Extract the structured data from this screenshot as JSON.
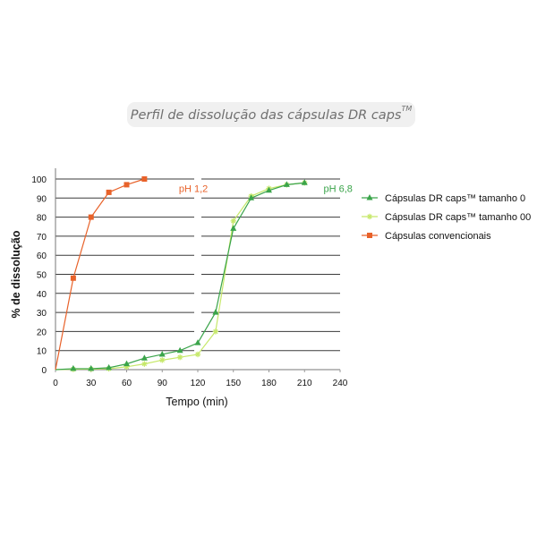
{
  "title": {
    "text": "Perfil de dissolução das cápsulas DR caps",
    "sup": "TM"
  },
  "chart_data": {
    "type": "line",
    "title": "Perfil de dissolução das cápsulas DR caps™",
    "xlabel": "Tempo (min)",
    "ylabel": "% de dissolução",
    "xlim": [
      0,
      240
    ],
    "ylim": [
      0,
      100
    ],
    "xticks": [
      0,
      30,
      60,
      90,
      120,
      150,
      180,
      210,
      240
    ],
    "yticks": [
      0,
      10,
      20,
      30,
      40,
      50,
      60,
      70,
      80,
      90,
      100
    ],
    "grid": "horizontal",
    "legend_position": "right",
    "annotations": [
      {
        "text": "pH 1,2",
        "x": 98,
        "y": 95,
        "color": "#e8622a"
      },
      {
        "text": "pH 6,8",
        "x": 220,
        "y": 95,
        "color": "#3aa44a"
      }
    ],
    "series": [
      {
        "name": "Cápsulas DR caps™ tamanho 0",
        "color": "#3aa44a",
        "marker": "triangle",
        "x": [
          0,
          15,
          30,
          45,
          60,
          75,
          90,
          105,
          120,
          135,
          150,
          165,
          180,
          195,
          210
        ],
        "y": [
          0,
          0.5,
          0.5,
          1,
          3,
          6,
          8,
          10,
          14,
          30,
          74,
          90,
          94,
          97,
          98
        ]
      },
      {
        "name": "Cápsulas DR caps™ tamanho 00",
        "color": "#c6e86a",
        "marker": "star",
        "x": [
          0,
          15,
          30,
          45,
          60,
          75,
          90,
          105,
          120,
          135,
          150,
          165,
          180,
          195,
          210
        ],
        "y": [
          0,
          0.2,
          0.3,
          0.5,
          1.5,
          3,
          5,
          6.5,
          8,
          20,
          78,
          91,
          95,
          97,
          98
        ]
      },
      {
        "name": "Cápsulas convencionais",
        "color": "#e8622a",
        "marker": "square",
        "x": [
          0,
          15,
          30,
          45,
          60,
          75
        ],
        "y": [
          0,
          48,
          80,
          93,
          97,
          100
        ]
      }
    ]
  }
}
